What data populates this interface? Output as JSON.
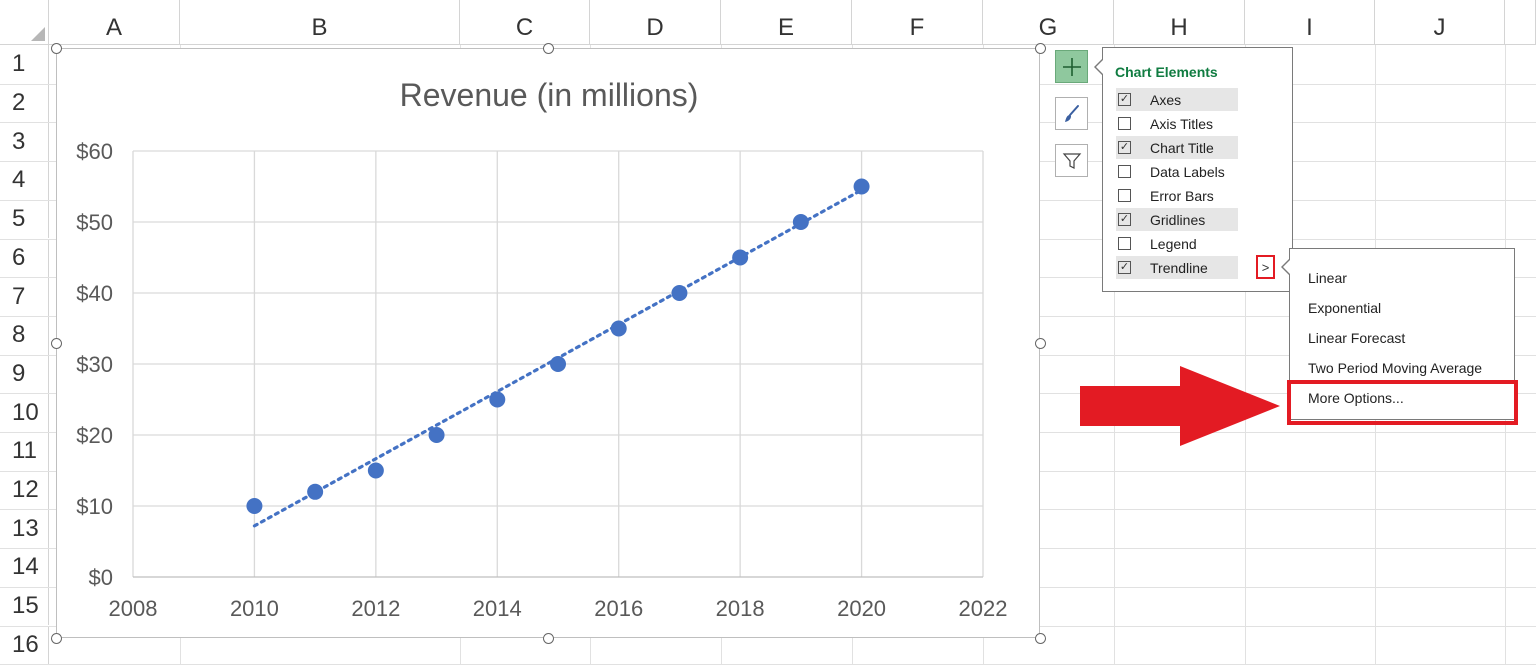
{
  "sheet": {
    "columns": [
      "A",
      "B",
      "C",
      "D",
      "E",
      "F",
      "G",
      "H",
      "I",
      "J"
    ],
    "rows": [
      "1",
      "2",
      "3",
      "4",
      "5",
      "6",
      "7",
      "8",
      "9",
      "10",
      "11",
      "12",
      "13",
      "14",
      "15",
      "16"
    ]
  },
  "chart_data": {
    "type": "scatter",
    "title": "Revenue (in millions)",
    "xlabel": "",
    "ylabel": "",
    "xlim": [
      2008,
      2022
    ],
    "ylim": [
      0,
      60
    ],
    "x_ticks": [
      "2008",
      "2010",
      "2012",
      "2014",
      "2016",
      "2018",
      "2020",
      "2022"
    ],
    "y_ticks": [
      "$0",
      "$10",
      "$20",
      "$30",
      "$40",
      "$50",
      "$60"
    ],
    "grid": true,
    "legend": "none",
    "series": [
      {
        "x": [
          2010,
          2011,
          2012,
          2013,
          2014,
          2015,
          2016,
          2017,
          2018,
          2019,
          2020
        ],
        "y": [
          10,
          12,
          15,
          20,
          25,
          30,
          35,
          40,
          45,
          50,
          55
        ],
        "color": "#4472c4"
      }
    ],
    "trendline": {
      "type": "linear",
      "style": "dotted",
      "x": [
        2010,
        2020
      ],
      "y": [
        7.2,
        54.5
      ],
      "color": "#4472c4"
    }
  },
  "side_buttons": [
    {
      "icon": "plus-icon",
      "active": true
    },
    {
      "icon": "paintbrush-icon",
      "active": false
    },
    {
      "icon": "filter-icon",
      "active": false
    }
  ],
  "chart_elements": {
    "title": "Chart Elements",
    "items": [
      {
        "label": "Axes",
        "checked": true
      },
      {
        "label": "Axis Titles",
        "checked": false
      },
      {
        "label": "Chart Title",
        "checked": true
      },
      {
        "label": "Data Labels",
        "checked": false
      },
      {
        "label": "Error Bars",
        "checked": false
      },
      {
        "label": "Gridlines",
        "checked": true
      },
      {
        "label": "Legend",
        "checked": false
      },
      {
        "label": "Trendline",
        "checked": true
      }
    ],
    "more_arrow": ">"
  },
  "trendline_menu": {
    "items": [
      "Linear",
      "Exponential",
      "Linear Forecast",
      "Two Period Moving Average",
      "More Options..."
    ]
  },
  "colors": {
    "accent_green": "#107c41",
    "highlight_red": "#e31b23",
    "series_blue": "#4472c4"
  }
}
